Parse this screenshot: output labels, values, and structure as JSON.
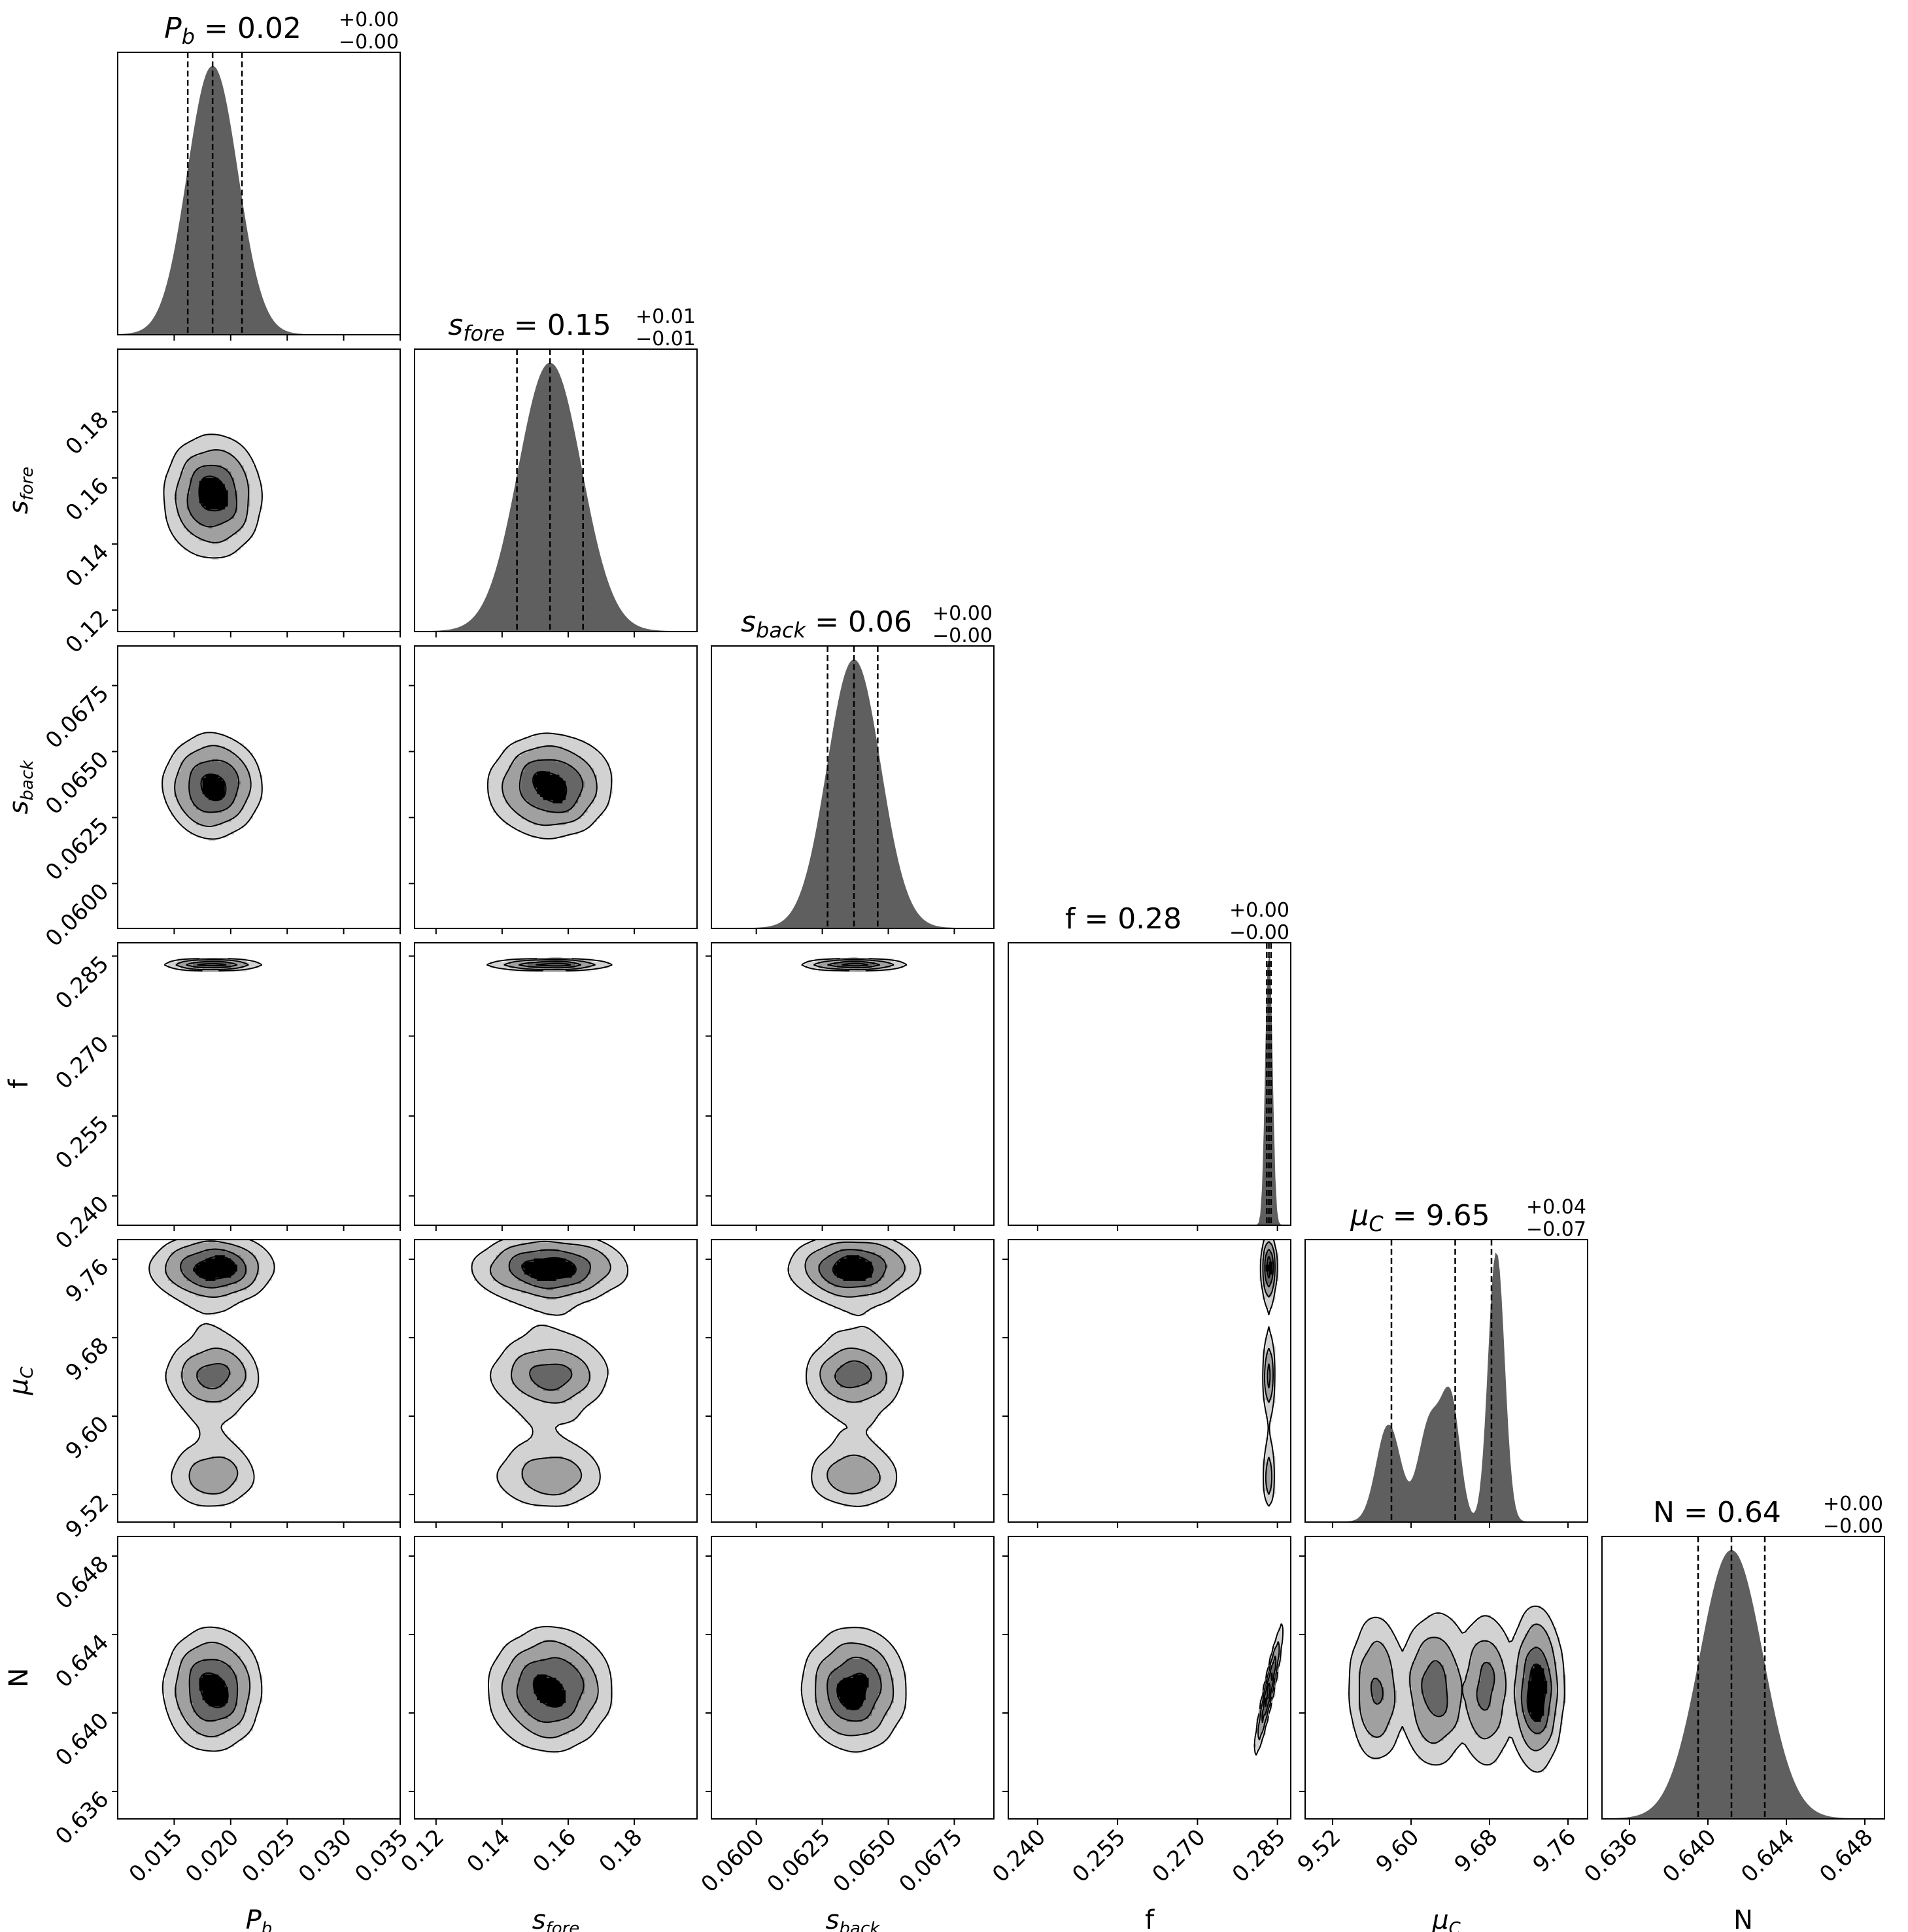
{
  "chart_data": {
    "type": "corner",
    "parameters": [
      {
        "key": "pb",
        "label": "P",
        "label_sub": "b",
        "italic": true,
        "title_value": "0.02",
        "title_plus": "+0.00",
        "title_minus": "−0.00",
        "range": [
          0.01,
          0.035
        ],
        "ticks": [
          "0.015",
          "0.020",
          "0.025",
          "0.030",
          "0.035"
        ],
        "tick_values": [
          0.015,
          0.02,
          0.025,
          0.03,
          0.035
        ],
        "median": 0.0184,
        "q16": 0.0162,
        "q84": 0.021,
        "hist_sd": 0.0022
      },
      {
        "key": "sfore",
        "label": "s",
        "label_sub": "fore",
        "italic": true,
        "title_value": "0.15",
        "title_plus": "+0.01",
        "title_minus": "−0.01",
        "range": [
          0.1135,
          0.199
        ],
        "ticks": [
          "0.12",
          "0.14",
          "0.16",
          "0.18"
        ],
        "tick_values": [
          0.12,
          0.14,
          0.16,
          0.18
        ],
        "median": 0.1545,
        "q16": 0.1445,
        "q84": 0.1645,
        "hist_sd": 0.0095
      },
      {
        "key": "sback",
        "label": "s",
        "label_sub": "back",
        "italic": true,
        "title_value": "0.06",
        "title_plus": "+0.00",
        "title_minus": "−0.00",
        "range": [
          0.0583,
          0.069
        ],
        "ticks": [
          "0.0600",
          "0.0625",
          "0.0650",
          "0.0675"
        ],
        "tick_values": [
          0.06,
          0.0625,
          0.065,
          0.0675
        ],
        "median": 0.0637,
        "q16": 0.0627,
        "q84": 0.0646,
        "hist_sd": 0.001
      },
      {
        "key": "f",
        "label": "f",
        "label_sub": "",
        "italic": false,
        "title_value": "0.28",
        "title_plus": "+0.00",
        "title_minus": "−0.00",
        "range": [
          0.2345,
          0.2875
        ],
        "ticks": [
          "0.240",
          "0.255",
          "0.270",
          "0.285"
        ],
        "tick_values": [
          0.24,
          0.255,
          0.27,
          0.285
        ],
        "median": 0.2834,
        "q16": 0.283,
        "q84": 0.2838,
        "hist_sd": 0.0006
      },
      {
        "key": "muc",
        "label": "μ",
        "label_sub": "C",
        "italic": true,
        "title_value": "9.65",
        "title_plus": "+0.04",
        "title_minus": "−0.07",
        "range": [
          9.492,
          9.78
        ],
        "ticks": [
          "9.52",
          "9.60",
          "9.68",
          "9.76"
        ],
        "tick_values": [
          9.52,
          9.6,
          9.68,
          9.76
        ],
        "median": 9.645,
        "q16": 9.58,
        "q84": 9.682,
        "hist_sd": 0.03
      },
      {
        "key": "n",
        "label": "N",
        "label_sub": "",
        "italic": false,
        "title_value": "0.64",
        "title_plus": "+0.00",
        "title_minus": "−0.00",
        "range": [
          0.6346,
          0.649
        ],
        "ticks": [
          "0.636",
          "0.640",
          "0.644",
          "0.648"
        ],
        "tick_values": [
          0.636,
          0.64,
          0.644,
          0.648
        ],
        "median": 0.6412,
        "q16": 0.6395,
        "q84": 0.6429,
        "hist_sd": 0.0016
      }
    ],
    "muc_histogram_modes": [
      {
        "center": 9.577,
        "sd": 0.012,
        "weight": 0.36
      },
      {
        "center": 9.62,
        "sd": 0.012,
        "weight": 0.38
      },
      {
        "center": 9.641,
        "sd": 0.009,
        "weight": 0.4
      },
      {
        "center": 9.687,
        "sd": 0.008,
        "weight": 1.0
      }
    ],
    "muc_contour_modes_relative": [
      {
        "center_in_range": 0.9,
        "weight": 1.0
      },
      {
        "center_in_range": 0.52,
        "weight": 0.55
      },
      {
        "center_in_range": 0.16,
        "weight": 0.45
      }
    ],
    "contour_levels": 4,
    "contour_colors": [
      "#d2d2d2",
      "#a0a0a0",
      "#666666",
      "#000000"
    ],
    "hist_color": "#5f5f5f",
    "grid": false,
    "legend": "none"
  }
}
